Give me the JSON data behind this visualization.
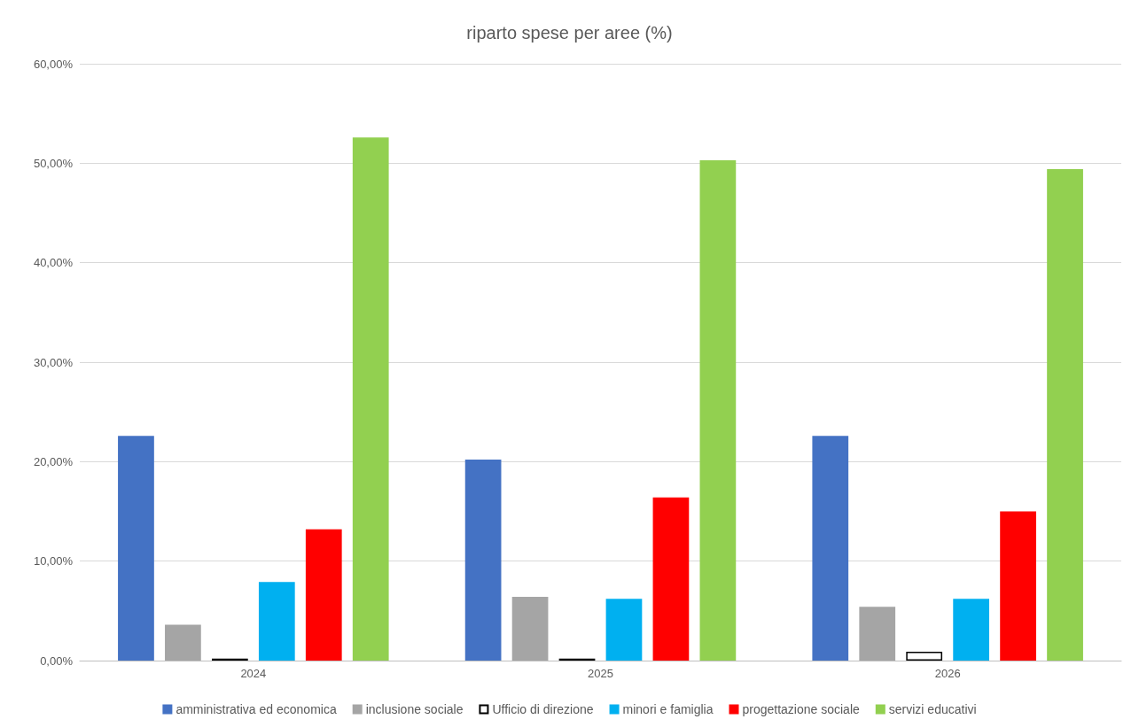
{
  "chart_data": {
    "type": "bar",
    "title": "riparto spese per aree (%)",
    "categories": [
      "2024",
      "2025",
      "2026"
    ],
    "series": [
      {
        "name": "amministrativa ed economica",
        "color": "#4472c4",
        "values": [
          22.6,
          20.2,
          22.6
        ]
      },
      {
        "name": "inclusione sociale",
        "color": "#a5a5a5",
        "values": [
          3.6,
          6.4,
          5.4
        ]
      },
      {
        "name": "Ufficio di direzione",
        "color": "#ffffff",
        "values": [
          0.2,
          0.2,
          0.9
        ]
      },
      {
        "name": "minori e famiglia",
        "color": "#00b0f0",
        "values": [
          7.9,
          6.2,
          6.2
        ]
      },
      {
        "name": "progettazione sociale",
        "color": "#ff0000",
        "values": [
          13.2,
          16.4,
          15.0
        ]
      },
      {
        "name": "servizi educativi",
        "color": "#92d050",
        "values": [
          52.6,
          50.3,
          49.4
        ]
      }
    ],
    "ylim": [
      0,
      60
    ],
    "yticks": [
      {
        "value": 0,
        "label": "0,00%"
      },
      {
        "value": 10,
        "label": "10,00%"
      },
      {
        "value": 20,
        "label": "20,00%"
      },
      {
        "value": 30,
        "label": "30,00%"
      },
      {
        "value": 40,
        "label": "40,00%"
      },
      {
        "value": 50,
        "label": "50,00%"
      },
      {
        "value": 60,
        "label": "60,00%"
      }
    ],
    "grid": "y",
    "legend": "bottom"
  }
}
